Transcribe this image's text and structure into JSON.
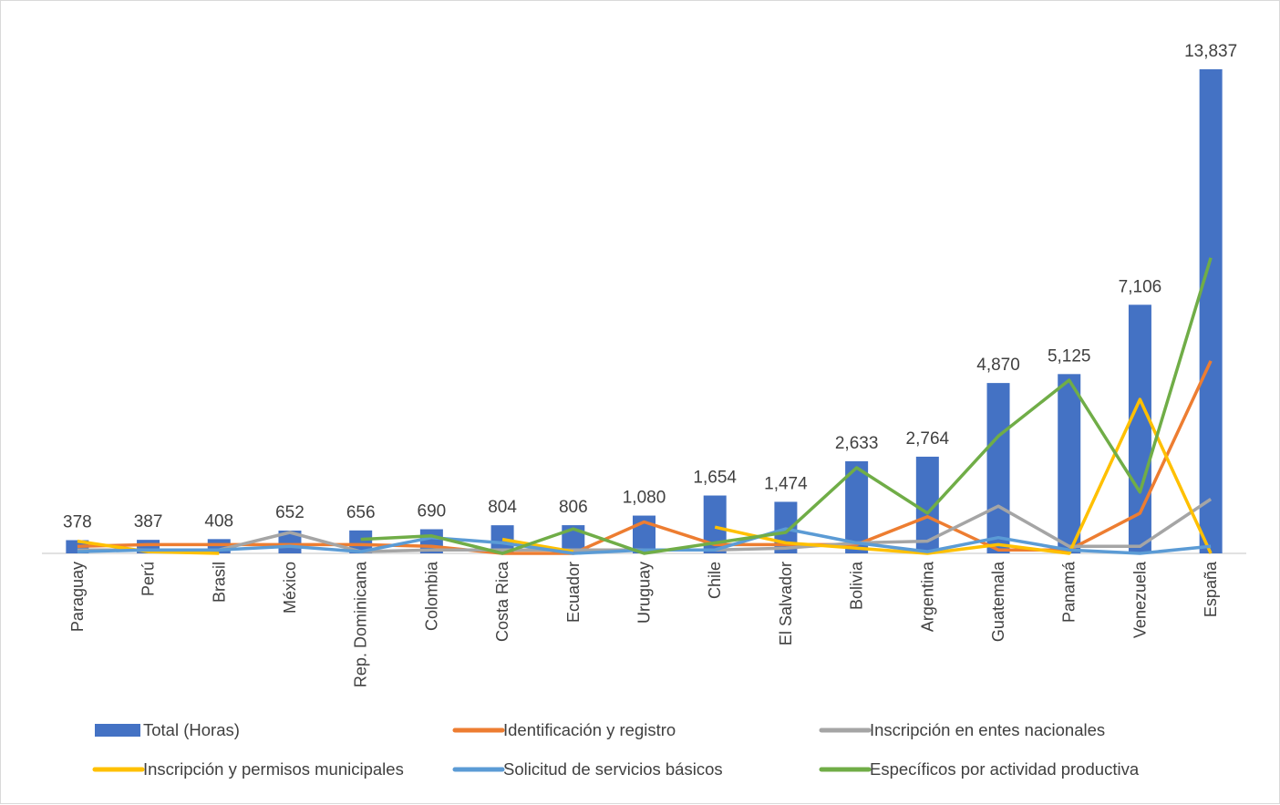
{
  "chart_data": {
    "type": "bar",
    "categories": [
      "Paraguay",
      "Perú",
      "Brasil",
      "México",
      "Rep. Dominicana",
      "Colombia",
      "Costa Rica",
      "Ecuador",
      "Uruguay",
      "Chile",
      "El Salvador",
      "Bolivia",
      "Argentina",
      "Guatemala",
      "Panamá",
      "Venezuela",
      "España"
    ],
    "series": [
      {
        "name": "Total (Horas)",
        "type": "bar",
        "color": "#4472C4",
        "values": [
          378,
          387,
          408,
          652,
          656,
          690,
          804,
          806,
          1080,
          1654,
          1474,
          2633,
          2764,
          4870,
          5125,
          7106,
          13837
        ]
      },
      {
        "name": "Identificación y registro",
        "type": "line",
        "color": "#ED7D31",
        "values": [
          200,
          250,
          250,
          250,
          250,
          200,
          0,
          0,
          900,
          250,
          250,
          250,
          1050,
          100,
          100,
          1150,
          5500
        ]
      },
      {
        "name": "Inscripción en entes nacionales",
        "type": "line",
        "color": "#A5A5A5",
        "values": [
          100,
          100,
          100,
          600,
          50,
          100,
          100,
          100,
          100,
          100,
          150,
          300,
          350,
          1350,
          200,
          200,
          1550
        ]
      },
      {
        "name": "Inscripción y permisos municipales",
        "type": "line",
        "color": "#FFC000",
        "values": [
          350,
          50,
          0,
          null,
          null,
          null,
          400,
          50,
          null,
          750,
          300,
          150,
          0,
          250,
          0,
          4400,
          0
        ]
      },
      {
        "name": "Solicitud de servicios básicos",
        "type": "line",
        "color": "#5B9BD5",
        "values": [
          50,
          100,
          100,
          200,
          50,
          450,
          300,
          0,
          100,
          100,
          700,
          300,
          50,
          450,
          100,
          0,
          200
        ]
      },
      {
        "name": "Específicos por actividad productiva",
        "type": "line",
        "color": "#70AD47",
        "values": [
          null,
          null,
          null,
          null,
          400,
          500,
          0,
          700,
          0,
          300,
          600,
          2450,
          1150,
          3350,
          4950,
          1750,
          8450
        ]
      }
    ],
    "data_labels": [
      "378",
      "387",
      "408",
      "652",
      "656",
      "690",
      "804",
      "806",
      "1,080",
      "1,654",
      "1,474",
      "2,633",
      "2,764",
      "4,870",
      "5,125",
      "7,106",
      "13,837"
    ],
    "ylim": [
      0,
      16000
    ],
    "legend_position": "bottom",
    "grid": false
  }
}
